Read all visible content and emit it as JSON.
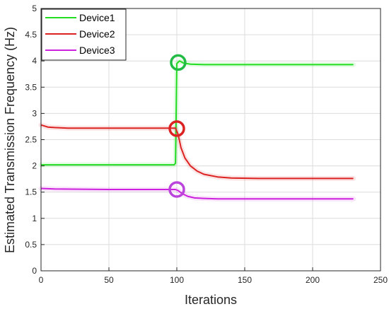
{
  "chart_data": {
    "type": "line",
    "xlabel": "Iterations",
    "ylabel": "Estimated Transmission Frequency (Hz)",
    "xlim": [
      0,
      250
    ],
    "ylim": [
      0,
      5
    ],
    "x_ticks": [
      0,
      50,
      100,
      150,
      200,
      250
    ],
    "y_ticks": [
      0,
      0.5,
      1,
      1.5,
      2,
      2.5,
      3,
      3.5,
      4,
      4.5,
      5
    ],
    "grid": true,
    "legend_position": "top-left",
    "series": [
      {
        "name": "Device1",
        "color": "#22dd22",
        "x": [
          0,
          98,
          99,
          100,
          102,
          105,
          110,
          120,
          140,
          180,
          230
        ],
        "y": [
          2.02,
          2.02,
          2.05,
          3.95,
          4.0,
          3.96,
          3.94,
          3.93,
          3.93,
          3.93,
          3.93
        ]
      },
      {
        "name": "Device2",
        "color": "#dd2222",
        "x": [
          0,
          5,
          10,
          20,
          50,
          99,
          101,
          103,
          106,
          110,
          115,
          120,
          130,
          140,
          160,
          200,
          230
        ],
        "y": [
          2.78,
          2.74,
          2.73,
          2.72,
          2.72,
          2.72,
          2.6,
          2.35,
          2.15,
          2.0,
          1.9,
          1.84,
          1.79,
          1.77,
          1.76,
          1.76,
          1.76
        ]
      },
      {
        "name": "Device3",
        "color": "#cc22dd",
        "x": [
          0,
          10,
          50,
          99,
          101,
          104,
          108,
          113,
          120,
          130,
          150,
          230
        ],
        "y": [
          1.57,
          1.56,
          1.55,
          1.55,
          1.53,
          1.47,
          1.42,
          1.39,
          1.38,
          1.37,
          1.37,
          1.37
        ]
      }
    ],
    "markers": [
      {
        "series": "Device1",
        "x": 101,
        "y": 3.97,
        "color": "#22bb44"
      },
      {
        "series": "Device2",
        "x": 100,
        "y": 2.71,
        "color": "#dd2222"
      },
      {
        "series": "Device3",
        "x": 100,
        "y": 1.55,
        "color": "#bb44dd"
      }
    ]
  }
}
